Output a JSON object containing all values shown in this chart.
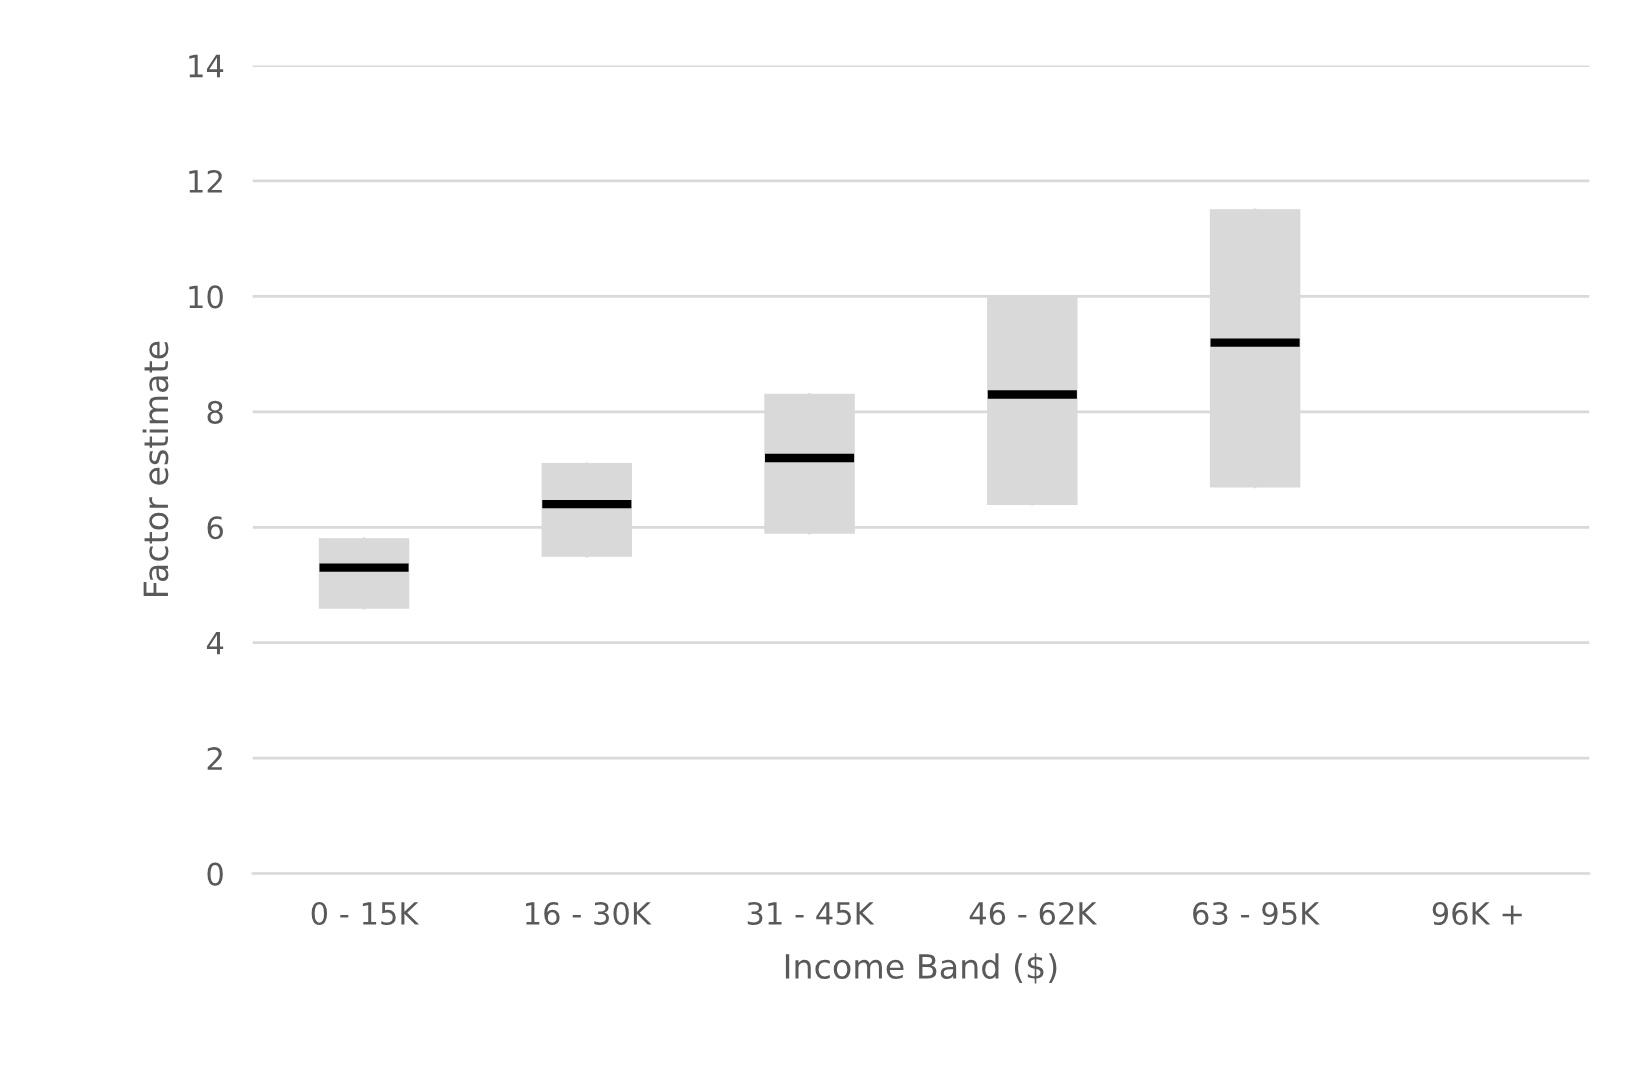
{
  "chart_data": {
    "type": "box",
    "xlabel": "Income Band ($)",
    "ylabel": "Factor estimate",
    "categories": [
      "0 - 15K",
      "16 - 30K",
      "31 - 45K",
      "46 - 62K",
      "63 - 95K",
      "96K +"
    ],
    "boxes": [
      {
        "low": 4.6,
        "q1": 4.6,
        "median": 5.3,
        "q3": 5.8,
        "high": 5.8
      },
      {
        "low": 5.5,
        "q1": 5.5,
        "median": 6.4,
        "q3": 7.1,
        "high": 7.1
      },
      {
        "low": 5.9,
        "q1": 5.9,
        "median": 7.2,
        "q3": 8.3,
        "high": 8.3
      },
      {
        "low": 6.4,
        "q1": 6.4,
        "median": 8.3,
        "q3": 10.0,
        "high": 10.0
      },
      {
        "low": 6.7,
        "q1": 6.7,
        "median": 9.2,
        "q3": 11.5,
        "high": 11.5
      },
      null
    ],
    "color": "#d9d9d9",
    "ylim": [
      0,
      14
    ],
    "yticks": [
      0,
      2,
      4,
      6,
      8,
      10,
      12,
      14
    ],
    "grid": "y"
  }
}
